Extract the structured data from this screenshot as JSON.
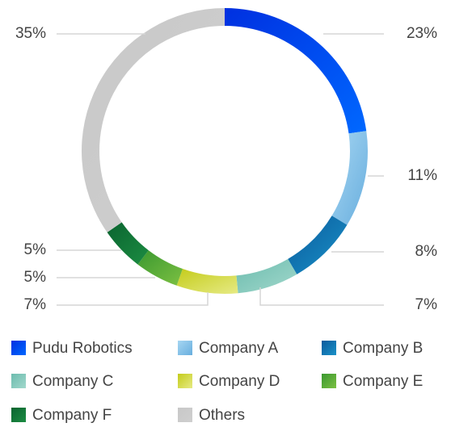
{
  "chart_data": {
    "type": "donut",
    "categories": [
      "Pudu Robotics",
      "Company A",
      "Company B",
      "Company C",
      "Company D",
      "Company E",
      "Company F",
      "Others"
    ],
    "values": [
      23,
      11,
      8,
      7,
      7,
      5,
      5,
      35
    ],
    "value_labels": [
      "23%",
      "11%",
      "8%",
      "7%",
      "7%",
      "5%",
      "5%",
      "35%"
    ],
    "colors": [
      [
        "#0030e0",
        "#0068ff"
      ],
      [
        "#a6d6f2",
        "#68aede"
      ],
      [
        "#0a5a9c",
        "#1a92c8"
      ],
      [
        "#6cbcae",
        "#a2d8cc"
      ],
      [
        "#c4cc1a",
        "#e6ea84"
      ],
      [
        "#3a9830",
        "#7cc042"
      ],
      [
        "#0a6430",
        "#1c8c42"
      ],
      [
        "#c8c8c8",
        "#cfcfcf"
      ]
    ],
    "legend": true
  }
}
